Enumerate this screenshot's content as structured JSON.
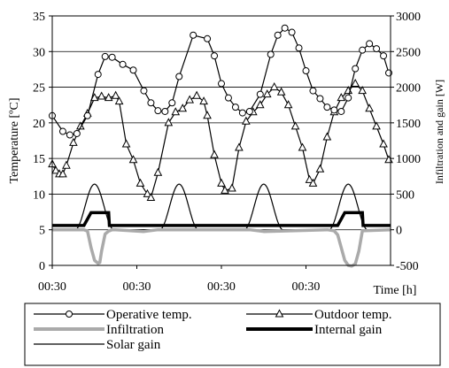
{
  "chart_data": {
    "type": "line",
    "title": "",
    "xlabel": "Time [h]",
    "ylabel": "Temperature [ºC]",
    "y2label": "Infiltration and gain [W]",
    "x_tick_labels": [
      "00:30",
      "00:30",
      "00:30",
      "00:30"
    ],
    "x_tick_positions_h": [
      0,
      24,
      48,
      72
    ],
    "xlim": [
      0,
      96
    ],
    "ylim": [
      0,
      35
    ],
    "y_ticks": [
      0,
      5,
      10,
      15,
      20,
      25,
      30,
      35
    ],
    "y2lim": [
      -500,
      3000
    ],
    "y2_ticks": [
      -500,
      0,
      500,
      1000,
      1500,
      2000,
      2500,
      3000
    ],
    "grid": true,
    "legend": {
      "position": "bottom",
      "entries": [
        {
          "label": "Operative temp.",
          "marker": "circle",
          "style": "line"
        },
        {
          "label": "Outdoor temp.",
          "marker": "triangle",
          "style": "line"
        },
        {
          "label": "Infiltration",
          "marker": "none",
          "style": "thick-gray"
        },
        {
          "label": "Internal gain",
          "marker": "none",
          "style": "thick-black"
        },
        {
          "label": "Solar gain",
          "marker": "none",
          "style": "thin-black"
        }
      ]
    },
    "series": [
      {
        "name": "Operative temp.",
        "axis": "left",
        "color": "#000000",
        "marker": "circle",
        "x": [
          0,
          3,
          5,
          7,
          10,
          13,
          15,
          17,
          20,
          23,
          26,
          28,
          30,
          32,
          34,
          36,
          40,
          44,
          46,
          48,
          50,
          52,
          54,
          56,
          59,
          62,
          64,
          66,
          68,
          70,
          72,
          74,
          76,
          78,
          80,
          82,
          84,
          86,
          88,
          90,
          92,
          94,
          95.5
        ],
        "y": [
          21,
          18.8,
          18.3,
          18.5,
          21,
          26.8,
          29.3,
          29.2,
          28.2,
          27.4,
          24.5,
          22.8,
          21.7,
          21.6,
          22.8,
          26.5,
          32.3,
          31.8,
          29.4,
          25.5,
          23.5,
          22.2,
          21.4,
          21.6,
          24,
          29.6,
          32.3,
          33.3,
          32.7,
          30.5,
          27.3,
          24.5,
          23.4,
          22.2,
          21.8,
          21.6,
          23.5,
          27.6,
          30.2,
          31.1,
          30.4,
          29.4,
          27
        ]
      },
      {
        "name": "Outdoor temp.",
        "axis": "left",
        "color": "#000000",
        "marker": "triangle",
        "x": [
          0,
          1,
          2,
          3,
          4,
          6,
          8,
          10,
          12,
          14,
          16,
          18,
          19,
          21,
          23,
          25,
          27,
          28,
          30,
          33,
          35,
          37,
          39,
          41,
          43,
          44,
          46,
          48,
          49,
          51,
          53,
          55,
          57,
          59,
          61,
          63,
          65,
          67,
          69,
          71,
          73,
          74,
          76,
          78,
          80,
          82,
          84,
          86,
          88,
          90,
          92,
          94,
          95.5
        ],
        "y": [
          14.2,
          13.3,
          12.8,
          12.8,
          14,
          17.2,
          19.5,
          21.3,
          23.5,
          23.7,
          23.5,
          23.8,
          23,
          17,
          14.8,
          11.5,
          10,
          9.5,
          13,
          20,
          21.5,
          22,
          23.2,
          23.8,
          23,
          21,
          15.5,
          11.5,
          10.5,
          10.8,
          16.5,
          20.2,
          21.5,
          22.5,
          24,
          25,
          24.3,
          22.5,
          19.5,
          16.5,
          12,
          11.5,
          13.5,
          18,
          21.5,
          23.5,
          24.5,
          25.5,
          24.5,
          22,
          19.5,
          17,
          14.8
        ]
      },
      {
        "name": "Infiltration",
        "axis": "right",
        "color": "#aaaaaa",
        "marker": "none",
        "x": [
          0,
          9,
          10,
          11,
          12,
          13,
          13.5,
          14,
          15,
          16,
          17,
          18,
          26,
          30,
          56,
          60,
          78,
          80,
          81,
          82,
          83,
          84,
          85,
          86,
          87,
          88,
          96
        ],
        "y": [
          0,
          0,
          -20,
          -250,
          -430,
          -470,
          -460,
          -300,
          -60,
          -20,
          0,
          0,
          -25,
          0,
          0,
          -25,
          0,
          -15,
          -70,
          -250,
          -430,
          -500,
          -510,
          -480,
          -300,
          -15,
          0
        ]
      },
      {
        "name": "Internal gain",
        "axis": "right",
        "color": "#000000",
        "marker": "none",
        "x": [
          0,
          9,
          11,
          14,
          16,
          16.2,
          19,
          96
        ],
        "y": [
          60,
          60,
          240,
          240,
          240,
          60,
          60,
          60
        ],
        "x_extra": [
          81,
          83,
          86,
          88,
          88.2
        ],
        "y_extra": [
          60,
          240,
          240,
          240,
          60
        ]
      },
      {
        "name": "Solar gain",
        "axis": "right",
        "color": "#000000",
        "marker": "none",
        "peaks_at_h": [
          12,
          36,
          60,
          84
        ],
        "peak_value": 640,
        "half_width_h": 5.5
      }
    ]
  }
}
